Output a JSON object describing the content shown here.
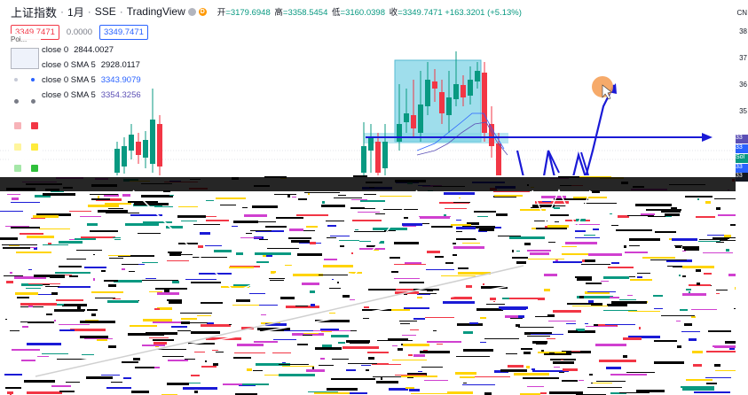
{
  "header": {
    "symbol_name": "上证指数",
    "interval": "1月",
    "exchange": "SSE",
    "source": "TradingView",
    "badge_a": "",
    "badge_b": "D",
    "ohlc": {
      "open_label": "开",
      "open": "=3179.6948",
      "high_label": "高",
      "high": "=3358.5454",
      "low_label": "低",
      "low": "=3160.0398",
      "close_label": "收",
      "close": "=3349.7471",
      "change": "+163.3201 (+5.13%)"
    }
  },
  "price_boxes": {
    "sell": "3349.7471",
    "spread": "0.0000",
    "buy": "3349.7471"
  },
  "legend": [
    {
      "name": "close 0",
      "value": "2844.0027"
    },
    {
      "name": "close 0 SMA 5",
      "value": "2928.0117"
    },
    {
      "name": "close 0 SMA 5",
      "value": "3343.9079"
    },
    {
      "name": "close 0 SMA 5",
      "value": "3354.3256"
    }
  ],
  "palette": {
    "title": "Poi..."
  },
  "right_axis": {
    "labels": [
      "CN",
      "38",
      "37",
      "36",
      "35",
      "33",
      "33",
      "Sol",
      "33",
      "33"
    ]
  },
  "colors": {
    "up": "#089981",
    "down": "#f23645",
    "drawing": "#1a1ad6",
    "box_fill": "#7fd3e6",
    "cursor": "#f5a15a"
  }
}
